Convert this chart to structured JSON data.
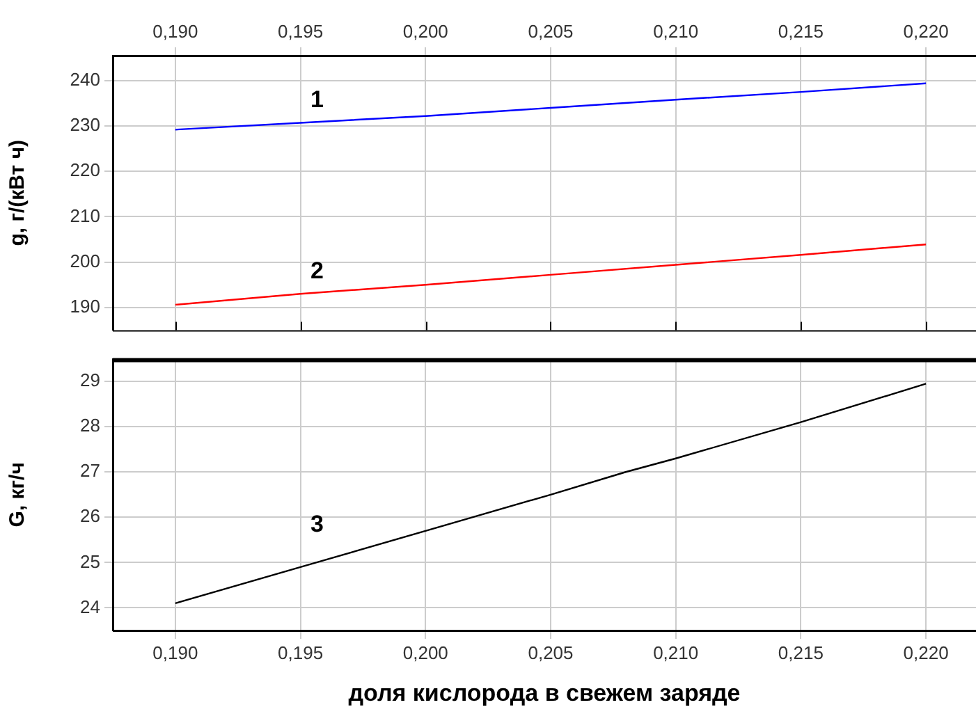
{
  "chart_data": [
    {
      "type": "line",
      "ylabel": "g, г/(кВт ч)",
      "xlim": [
        0.1875,
        0.222
      ],
      "xticks": [
        {
          "value": 0.19,
          "label": "0,190"
        },
        {
          "value": 0.195,
          "label": "0,195"
        },
        {
          "value": 0.2,
          "label": "0,200"
        },
        {
          "value": 0.205,
          "label": "0,205"
        },
        {
          "value": 0.21,
          "label": "0,210"
        },
        {
          "value": 0.215,
          "label": "0,215"
        },
        {
          "value": 0.22,
          "label": "0,220"
        }
      ],
      "ylim": [
        185,
        245.5
      ],
      "yticks": [
        190,
        200,
        210,
        220,
        230,
        240
      ],
      "grid": true,
      "legend": false,
      "marker": "none",
      "line_style": "solid",
      "x": [
        0.19,
        0.195,
        0.2,
        0.205,
        0.21,
        0.215,
        0.22
      ],
      "series": [
        {
          "color": "#0000ff",
          "values": [
            229.2,
            230.7,
            232.2,
            234,
            235.8,
            237.5,
            239.4
          ]
        },
        {
          "color": "#ff0000",
          "values": [
            190.6,
            193,
            195,
            197.2,
            199.4,
            201.6,
            203.9
          ]
        }
      ],
      "annotations": [
        "1",
        "2"
      ]
    },
    {
      "type": "line",
      "xlabel": "доля кислорода в свежем заряде",
      "ylabel": "G, кг/ч",
      "xlim": [
        0.1875,
        0.222
      ],
      "xticks": [
        {
          "value": 0.19,
          "label": "0,190"
        },
        {
          "value": 0.195,
          "label": "0,195"
        },
        {
          "value": 0.2,
          "label": "0,200"
        },
        {
          "value": 0.205,
          "label": "0,205"
        },
        {
          "value": 0.21,
          "label": "0,210"
        },
        {
          "value": 0.215,
          "label": "0,215"
        },
        {
          "value": 0.22,
          "label": "0,220"
        }
      ],
      "ylim": [
        23.5,
        29.5
      ],
      "yticks": [
        24,
        25,
        26,
        27,
        28,
        29
      ],
      "grid": true,
      "legend": false,
      "marker": "none",
      "line_style": "solid",
      "x": [
        0.19,
        0.195,
        0.2,
        0.205,
        0.208,
        0.21,
        0.215,
        0.22
      ],
      "series": [
        {
          "color": "#000000",
          "values": [
            24.1,
            24.9,
            25.7,
            26.5,
            27,
            27.3,
            28.1,
            28.95
          ]
        }
      ],
      "annotations": [
        "3"
      ]
    }
  ]
}
